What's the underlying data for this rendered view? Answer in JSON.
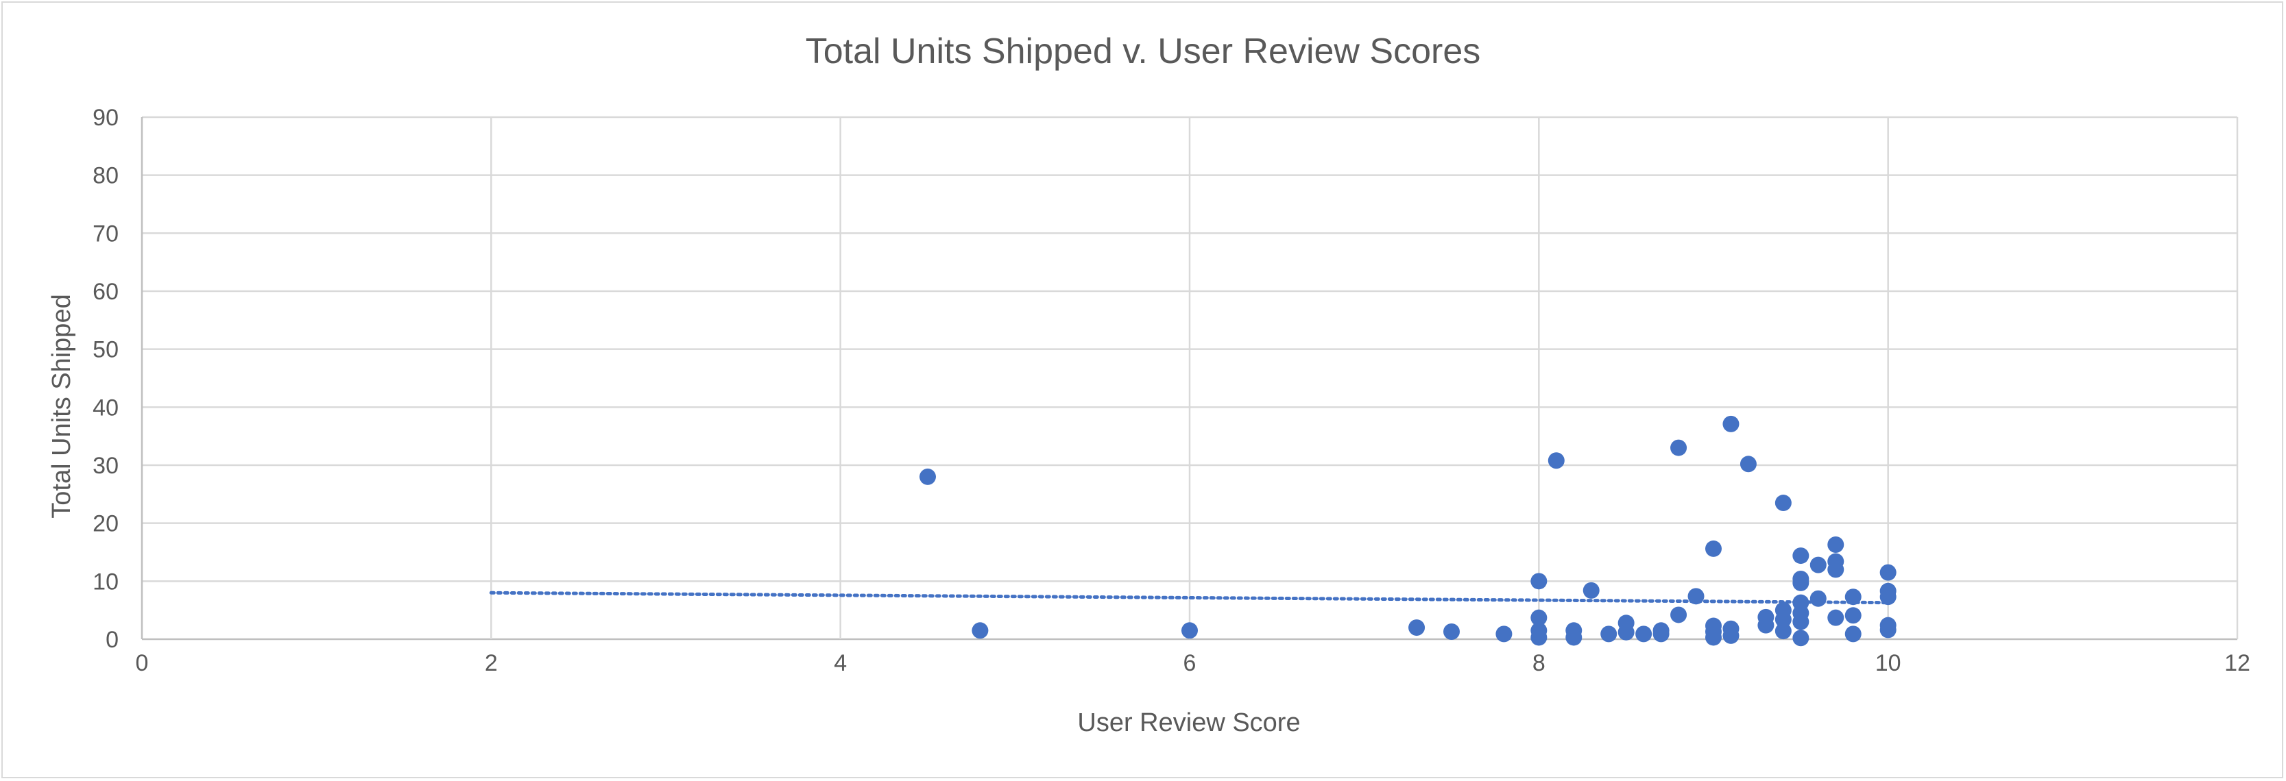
{
  "chart_data": {
    "type": "scatter",
    "title": "Total Units Shipped v. User Review Scores",
    "xlabel": "User Review Score",
    "ylabel": "Total Units Shipped",
    "xlim": [
      0,
      12
    ],
    "ylim": [
      0,
      90
    ],
    "x_ticks": [
      "0",
      "2",
      "4",
      "6",
      "8",
      "10",
      "12"
    ],
    "y_ticks": [
      "0",
      "10",
      "20",
      "30",
      "40",
      "50",
      "60",
      "70",
      "80",
      "90"
    ],
    "grid": true,
    "legend": "none",
    "marker_color": "#4472c4",
    "series": [
      {
        "points": [
          {
            "x": 4.5,
            "y": 28.0
          },
          {
            "x": 4.8,
            "y": 1.5
          },
          {
            "x": 6.0,
            "y": 1.5
          },
          {
            "x": 7.3,
            "y": 2.0
          },
          {
            "x": 7.5,
            "y": 1.3
          },
          {
            "x": 7.8,
            "y": 0.9
          },
          {
            "x": 8.0,
            "y": 10.0
          },
          {
            "x": 8.0,
            "y": 3.7
          },
          {
            "x": 8.0,
            "y": 1.5
          },
          {
            "x": 8.0,
            "y": 0.3
          },
          {
            "x": 8.1,
            "y": 30.8
          },
          {
            "x": 8.2,
            "y": 1.5
          },
          {
            "x": 8.2,
            "y": 0.3
          },
          {
            "x": 8.3,
            "y": 8.4
          },
          {
            "x": 8.4,
            "y": 0.9
          },
          {
            "x": 8.5,
            "y": 2.8
          },
          {
            "x": 8.5,
            "y": 1.2
          },
          {
            "x": 8.6,
            "y": 0.9
          },
          {
            "x": 8.7,
            "y": 1.5
          },
          {
            "x": 8.7,
            "y": 0.9
          },
          {
            "x": 8.8,
            "y": 33.0
          },
          {
            "x": 8.8,
            "y": 4.2
          },
          {
            "x": 8.9,
            "y": 7.4
          },
          {
            "x": 9.0,
            "y": 15.6
          },
          {
            "x": 9.0,
            "y": 2.3
          },
          {
            "x": 9.0,
            "y": 1.3
          },
          {
            "x": 9.0,
            "y": 0.3
          },
          {
            "x": 9.1,
            "y": 37.1
          },
          {
            "x": 9.1,
            "y": 1.8
          },
          {
            "x": 9.1,
            "y": 0.6
          },
          {
            "x": 9.2,
            "y": 30.2
          },
          {
            "x": 9.3,
            "y": 3.8
          },
          {
            "x": 9.3,
            "y": 2.4
          },
          {
            "x": 9.4,
            "y": 23.5
          },
          {
            "x": 9.4,
            "y": 5.0
          },
          {
            "x": 9.4,
            "y": 3.4
          },
          {
            "x": 9.4,
            "y": 1.4
          },
          {
            "x": 9.5,
            "y": 14.4
          },
          {
            "x": 9.5,
            "y": 10.4
          },
          {
            "x": 9.5,
            "y": 9.7
          },
          {
            "x": 9.5,
            "y": 6.3
          },
          {
            "x": 9.5,
            "y": 4.5
          },
          {
            "x": 9.5,
            "y": 3.0
          },
          {
            "x": 9.5,
            "y": 0.2
          },
          {
            "x": 9.6,
            "y": 12.8
          },
          {
            "x": 9.6,
            "y": 7.0
          },
          {
            "x": 9.7,
            "y": 16.3
          },
          {
            "x": 9.7,
            "y": 13.4
          },
          {
            "x": 9.7,
            "y": 12.0
          },
          {
            "x": 9.7,
            "y": 3.7
          },
          {
            "x": 9.8,
            "y": 7.3
          },
          {
            "x": 9.8,
            "y": 4.1
          },
          {
            "x": 9.8,
            "y": 0.9
          },
          {
            "x": 10.0,
            "y": 11.5
          },
          {
            "x": 10.0,
            "y": 8.3
          },
          {
            "x": 10.0,
            "y": 7.3
          },
          {
            "x": 10.0,
            "y": 2.4
          },
          {
            "x": 10.0,
            "y": 1.6
          }
        ]
      }
    ],
    "trendline": {
      "type": "linear",
      "start": {
        "x": 2,
        "y": 8.0
      },
      "end": {
        "x": 10,
        "y": 6.3
      }
    }
  }
}
